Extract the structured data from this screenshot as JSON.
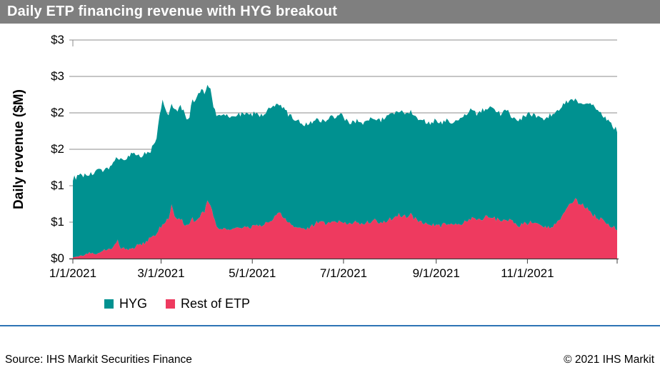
{
  "title": "Daily ETP financing revenue with HYG breakout",
  "colors": {
    "title_bar_bg": "#7F7F7F",
    "title_text": "#FFFFFF",
    "hyg": "#009190",
    "rest_of_etp": "#EE3A5F",
    "gridline": "#8C8C8C",
    "axis": "#3F3F3F",
    "footer_rule": "#2E74B5"
  },
  "footer": {
    "source": "Source: IHS Markit Securities Finance",
    "copyright": "© 2021 IHS Markit"
  },
  "chart_data": {
    "type": "area",
    "stacked": true,
    "title": "Daily ETP financing revenue with HYG breakout",
    "xlabel": "",
    "ylabel": "Daily revenue ($M)",
    "ylim": [
      0,
      3
    ],
    "grid": "horizontal",
    "legend_position": "bottom-left",
    "y_ticks": [
      {
        "value": 3.0,
        "label": "$3"
      },
      {
        "value": 2.5,
        "label": "$3"
      },
      {
        "value": 2.0,
        "label": "$2"
      },
      {
        "value": 1.5,
        "label": "$2"
      },
      {
        "value": 1.0,
        "label": "$1"
      },
      {
        "value": 0.5,
        "label": "$1"
      },
      {
        "value": 0.0,
        "label": "$0"
      }
    ],
    "x_range_days": [
      0,
      364
    ],
    "x_ticks": [
      {
        "day": 0,
        "label": "1/1/2021"
      },
      {
        "day": 59,
        "label": "3/1/2021"
      },
      {
        "day": 120,
        "label": "5/1/2021"
      },
      {
        "day": 181,
        "label": "7/1/2021"
      },
      {
        "day": 243,
        "label": "9/1/2021"
      },
      {
        "day": 304,
        "label": "11/1/2021"
      }
    ],
    "legend": [
      {
        "name": "HYG",
        "color": "#009190"
      },
      {
        "name": "Rest of ETP",
        "color": "#EE3A5F"
      }
    ],
    "days": [
      0,
      4,
      8,
      12,
      16,
      20,
      24,
      28,
      30,
      32,
      36,
      40,
      44,
      48,
      52,
      56,
      58,
      60,
      62,
      64,
      66,
      68,
      70,
      72,
      74,
      76,
      78,
      80,
      82,
      84,
      86,
      88,
      90,
      92,
      94,
      96,
      98,
      102,
      106,
      110,
      114,
      118,
      122,
      126,
      130,
      134,
      138,
      140,
      144,
      148,
      152,
      156,
      160,
      164,
      168,
      172,
      176,
      180,
      182,
      186,
      190,
      194,
      198,
      202,
      206,
      210,
      214,
      218,
      222,
      226,
      230,
      234,
      238,
      242,
      246,
      250,
      254,
      258,
      262,
      266,
      270,
      274,
      278,
      282,
      286,
      290,
      294,
      298,
      302,
      306,
      310,
      314,
      318,
      322,
      326,
      330,
      334,
      336,
      340,
      344,
      348,
      352,
      356,
      360,
      364
    ],
    "series": [
      {
        "name": "Rest of ETP",
        "color": "#EE3A5F",
        "stack_layer": "bottom",
        "values": [
          0.02,
          0.03,
          0.05,
          0.08,
          0.06,
          0.1,
          0.12,
          0.2,
          0.25,
          0.15,
          0.12,
          0.15,
          0.18,
          0.22,
          0.28,
          0.35,
          0.42,
          0.45,
          0.5,
          0.55,
          0.75,
          0.6,
          0.55,
          0.55,
          0.5,
          0.45,
          0.5,
          0.55,
          0.5,
          0.55,
          0.6,
          0.65,
          0.8,
          0.75,
          0.55,
          0.45,
          0.4,
          0.4,
          0.38,
          0.42,
          0.45,
          0.42,
          0.45,
          0.45,
          0.5,
          0.55,
          0.65,
          0.6,
          0.5,
          0.45,
          0.42,
          0.4,
          0.45,
          0.5,
          0.48,
          0.5,
          0.5,
          0.52,
          0.5,
          0.48,
          0.5,
          0.48,
          0.5,
          0.52,
          0.5,
          0.52,
          0.55,
          0.6,
          0.58,
          0.6,
          0.52,
          0.5,
          0.48,
          0.45,
          0.45,
          0.48,
          0.45,
          0.48,
          0.5,
          0.55,
          0.52,
          0.55,
          0.58,
          0.55,
          0.52,
          0.55,
          0.5,
          0.45,
          0.48,
          0.5,
          0.48,
          0.45,
          0.42,
          0.45,
          0.55,
          0.7,
          0.78,
          0.8,
          0.75,
          0.7,
          0.6,
          0.55,
          0.5,
          0.45,
          0.4
        ]
      },
      {
        "name": "HYG",
        "color": "#009190",
        "stack_layer": "top",
        "values": [
          1.08,
          1.1,
          1.1,
          1.08,
          1.13,
          1.12,
          1.13,
          1.12,
          1.15,
          1.21,
          1.26,
          1.29,
          1.22,
          1.22,
          1.2,
          1.3,
          1.53,
          1.72,
          1.55,
          1.43,
          1.37,
          1.48,
          1.45,
          1.55,
          1.52,
          1.43,
          1.45,
          1.65,
          1.65,
          1.7,
          1.7,
          1.63,
          1.58,
          1.57,
          1.55,
          1.53,
          1.55,
          1.57,
          1.55,
          1.55,
          1.55,
          1.54,
          1.55,
          1.51,
          1.53,
          1.52,
          1.48,
          1.48,
          1.48,
          1.47,
          1.46,
          1.44,
          1.43,
          1.42,
          1.4,
          1.46,
          1.42,
          1.5,
          1.42,
          1.38,
          1.4,
          1.38,
          1.4,
          1.42,
          1.4,
          1.42,
          1.43,
          1.44,
          1.41,
          1.43,
          1.42,
          1.4,
          1.38,
          1.45,
          1.41,
          1.42,
          1.41,
          1.42,
          1.45,
          1.49,
          1.47,
          1.48,
          1.5,
          1.48,
          1.47,
          1.48,
          1.45,
          1.45,
          1.47,
          1.49,
          1.47,
          1.46,
          1.53,
          1.55,
          1.51,
          1.45,
          1.42,
          1.37,
          1.37,
          1.46,
          1.5,
          1.47,
          1.43,
          1.39,
          1.36
        ]
      }
    ]
  }
}
